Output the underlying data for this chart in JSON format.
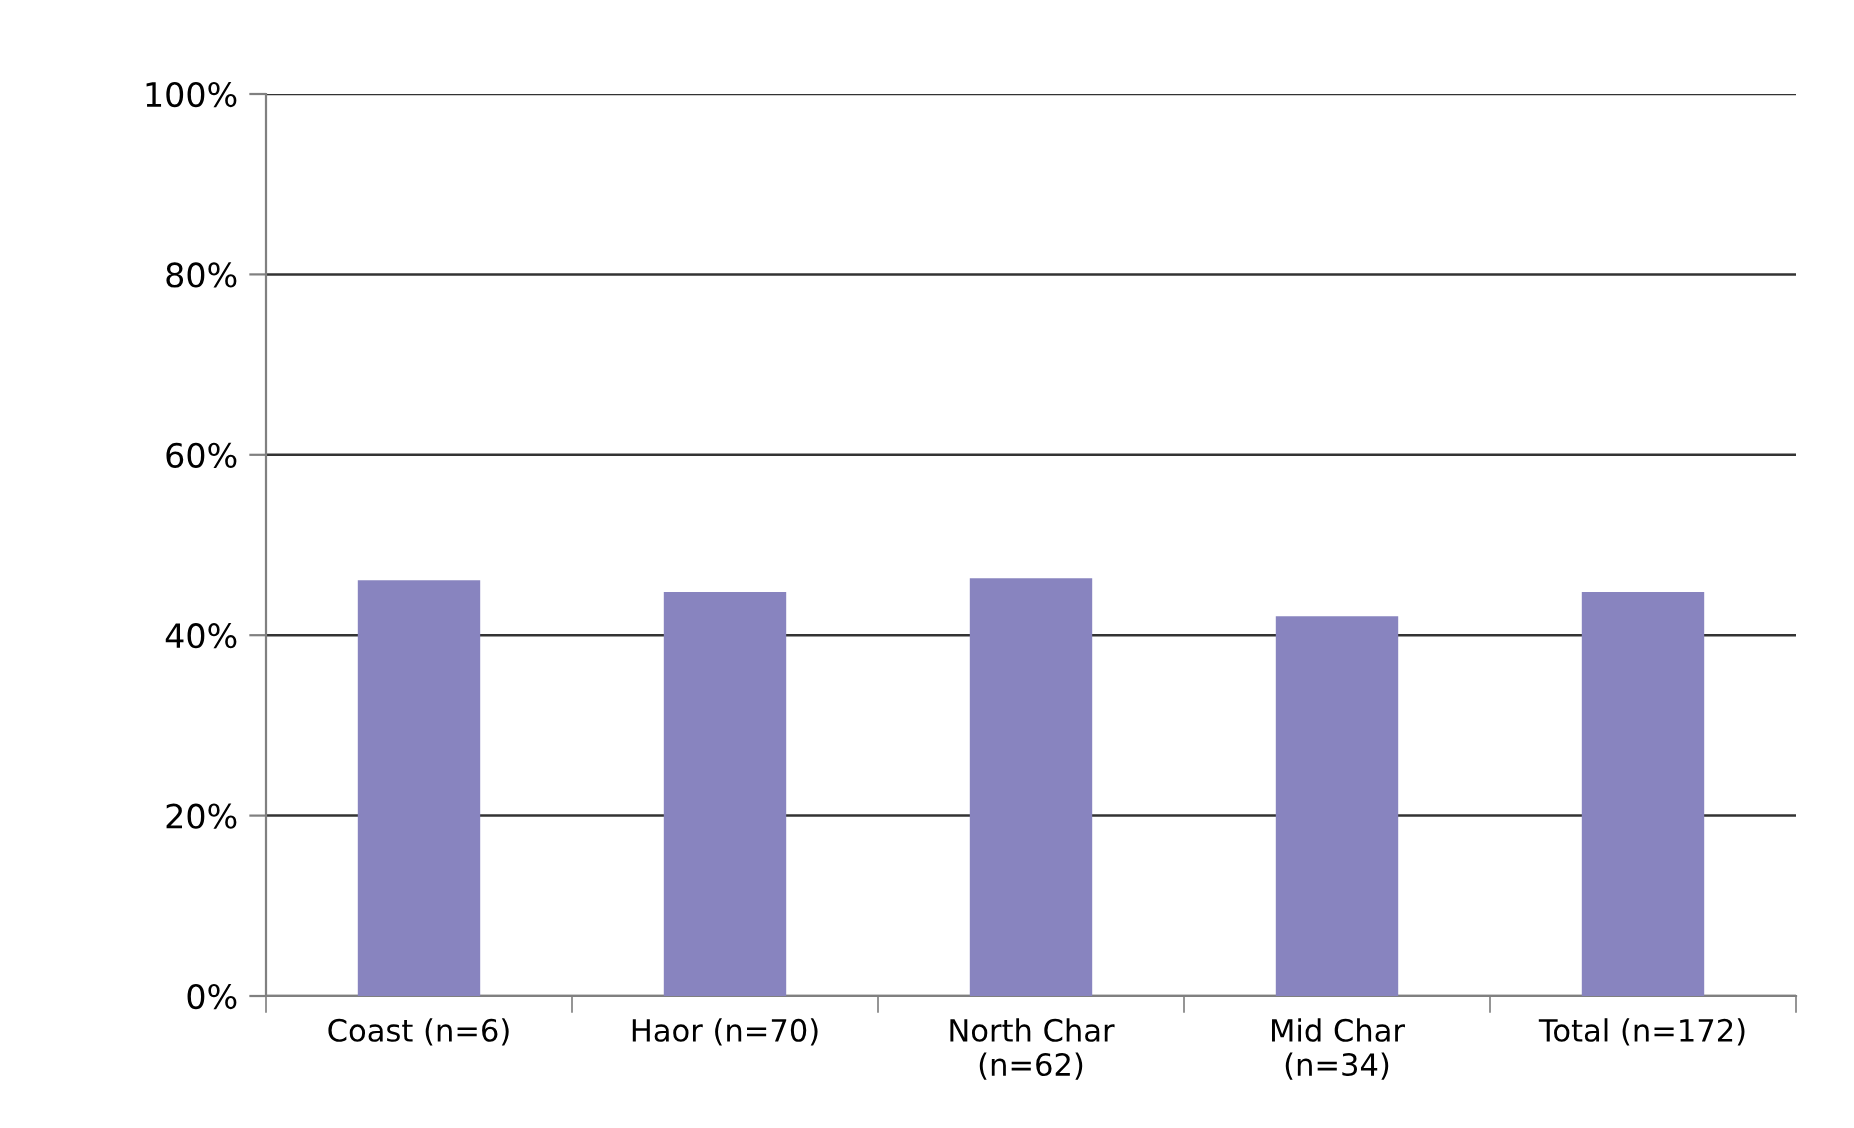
{
  "chart_data": {
    "type": "bar",
    "categories": [
      "Coast (n=6)",
      "Haor (n=70)",
      "North Char\n(n=62)",
      "Mid Char\n(n=34)",
      "Total (n=172)"
    ],
    "values": [
      46.1,
      44.8,
      46.3,
      42.1,
      44.8
    ],
    "color": "#8884bf",
    "ylim": [
      0,
      100
    ],
    "yticks": [
      {
        "value": 0,
        "label": "0%"
      },
      {
        "value": 20,
        "label": "20%"
      },
      {
        "value": 40,
        "label": "40%"
      },
      {
        "value": 60,
        "label": "60%"
      },
      {
        "value": 80,
        "label": "80%"
      },
      {
        "value": 100,
        "label": "100%"
      }
    ],
    "grid": "y",
    "legend": false
  }
}
